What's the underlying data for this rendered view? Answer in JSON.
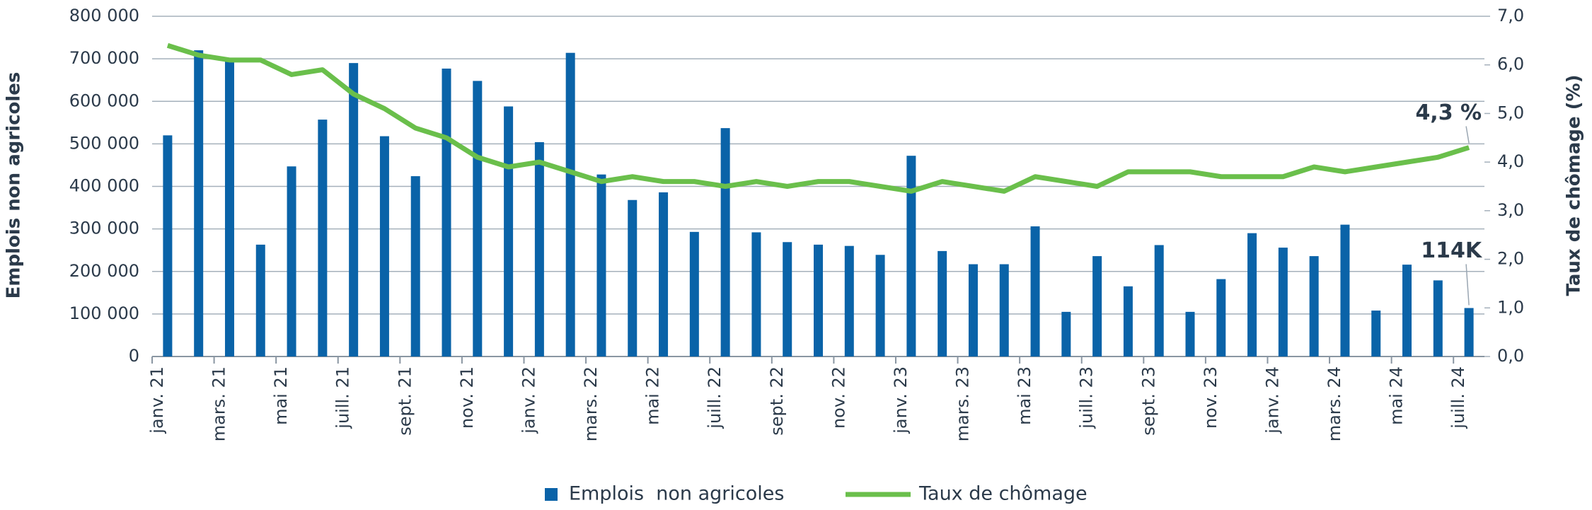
{
  "chart_data": {
    "type": "bar",
    "y_label": "Emplois non agricoles",
    "y2_label": "Taux de chômage (%)",
    "categories": [
      "janv. 21",
      null,
      "mars. 21",
      null,
      "mai 21",
      null,
      "juill. 21",
      null,
      "sept. 21",
      null,
      "nov. 21",
      null,
      "janv. 22",
      null,
      "mars. 22",
      null,
      "mai 22",
      null,
      "juill. 22",
      null,
      "sept. 22",
      null,
      "nov. 22",
      null,
      "janv. 23",
      null,
      "mars. 23",
      null,
      "mai 23",
      null,
      "juill. 23",
      null,
      "sept. 23",
      null,
      "nov. 23",
      null,
      "janv. 24",
      null,
      "mars. 24",
      null,
      "mai 24",
      null,
      "juill. 24"
    ],
    "series": [
      {
        "name": "Emplois  non agricoles",
        "type": "bar",
        "color": "#0a63a8",
        "values": [
          520000,
          720000,
          700000,
          263000,
          447000,
          557000,
          690000,
          518000,
          424000,
          677000,
          648000,
          588000,
          504000,
          714000,
          428000,
          368000,
          386000,
          293000,
          537000,
          292000,
          269000,
          263000,
          260000,
          239000,
          472000,
          248000,
          217000,
          217000,
          306000,
          105000,
          236000,
          165000,
          262000,
          105000,
          182000,
          290000,
          256000,
          236000,
          310000,
          108000,
          216000,
          179000,
          114000
        ],
        "value_labels": [
          null,
          null,
          null,
          null,
          null,
          null,
          null,
          null,
          null,
          null,
          null,
          null,
          null,
          null,
          null,
          null,
          null,
          null,
          null,
          null,
          null,
          null,
          null,
          null,
          null,
          null,
          null,
          null,
          null,
          null,
          null,
          null,
          null,
          null,
          null,
          null,
          null,
          null,
          null,
          null,
          null,
          null,
          "114K"
        ]
      },
      {
        "name": "Taux de chômage",
        "type": "line",
        "axis": "y2",
        "color": "#6abf4b",
        "values": [
          6.4,
          6.2,
          6.1,
          6.1,
          5.8,
          5.9,
          5.4,
          5.1,
          4.7,
          4.5,
          4.1,
          3.9,
          4.0,
          3.8,
          3.6,
          3.7,
          3.6,
          3.6,
          3.5,
          3.6,
          3.5,
          3.6,
          3.6,
          3.5,
          3.4,
          3.6,
          3.5,
          3.4,
          3.7,
          3.6,
          3.5,
          3.8,
          3.8,
          3.8,
          3.7,
          3.7,
          3.7,
          3.9,
          3.8,
          3.9,
          4.0,
          4.1,
          4.3
        ],
        "value_labels": [
          null,
          null,
          null,
          null,
          null,
          null,
          null,
          null,
          null,
          null,
          null,
          null,
          null,
          null,
          null,
          null,
          null,
          null,
          null,
          null,
          null,
          null,
          null,
          null,
          null,
          null,
          null,
          null,
          null,
          null,
          null,
          null,
          null,
          null,
          null,
          null,
          null,
          null,
          null,
          null,
          null,
          null,
          "4,3 %"
        ]
      }
    ],
    "ylim": [
      0,
      800000
    ],
    "yticks": [
      0,
      {
        "value": 100000,
        "label": "100 000"
      },
      {
        "value": 200000,
        "label": "200 000"
      },
      {
        "value": 300000,
        "label": "300 000"
      },
      {
        "value": 400000,
        "label": "400 000"
      },
      {
        "value": 500000,
        "label": "500 000"
      },
      {
        "value": 600000,
        "label": "600 000"
      },
      {
        "value": 700000,
        "label": "700 000"
      },
      {
        "value": 800000,
        "label": "800 000"
      }
    ],
    "y2lim": [
      0,
      7
    ],
    "y2ticks": [
      {
        "value": 0,
        "label": "0,0"
      },
      {
        "value": 1,
        "label": "1,0"
      },
      {
        "value": 2,
        "label": "2,0"
      },
      {
        "value": 3,
        "label": "3,0"
      },
      {
        "value": 4,
        "label": "4,0"
      },
      {
        "value": 5,
        "label": "5,0"
      },
      {
        "value": 6,
        "label": "6,0"
      },
      {
        "value": 7,
        "label": "7,0"
      }
    ],
    "grid": true,
    "legend": "bottom"
  }
}
